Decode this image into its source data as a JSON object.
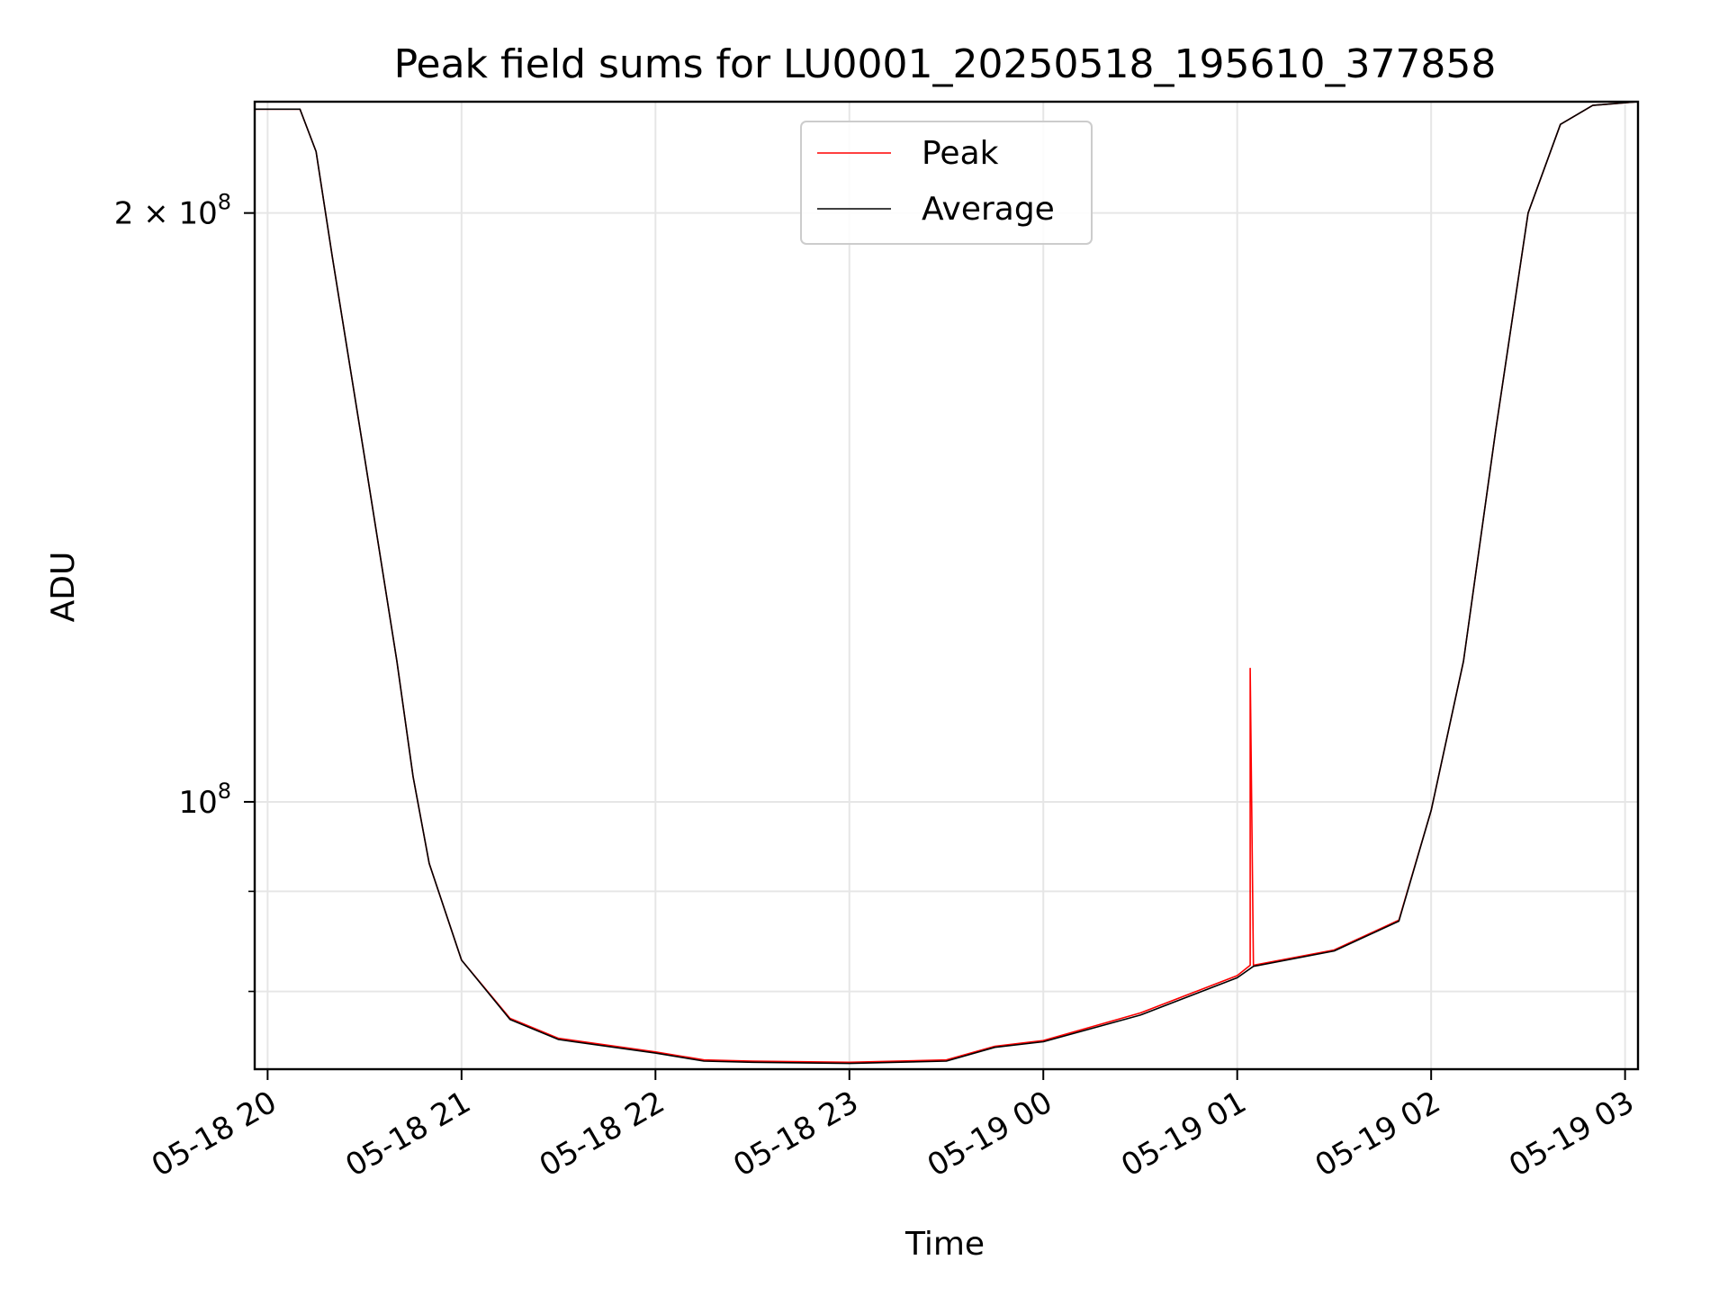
{
  "chart_data": {
    "type": "line",
    "title": "Peak field sums for LU0001_20250518_195610_377858",
    "xlabel": "Time",
    "ylabel": "ADU",
    "y_scale": "log",
    "x_range": [
      "05-18 19:56",
      "05-19 03:04"
    ],
    "ylim": [
      73000000,
      228000000
    ],
    "grid": true,
    "legend_position": "upper center",
    "x_ticks": [
      "05-18 20",
      "05-18 21",
      "05-18 22",
      "05-18 23",
      "05-19 00",
      "05-19 01",
      "05-19 02",
      "05-19 03"
    ],
    "y_major_ticks": [
      {
        "value": 100000000,
        "mantissa": "",
        "exponent": "8"
      },
      {
        "value": 200000000,
        "mantissa": "2 × ",
        "exponent": "8"
      }
    ],
    "y_minor_ticks": [
      80000000,
      90000000
    ],
    "series": [
      {
        "name": "Peak",
        "color": "#ff0000",
        "x": [
          "05-18 19:56",
          "05-18 20:10",
          "05-18 20:15",
          "05-18 20:20",
          "05-18 20:30",
          "05-18 20:40",
          "05-18 20:45",
          "05-18 20:50",
          "05-18 21:00",
          "05-18 21:15",
          "05-18 21:30",
          "05-18 22:00",
          "05-18 22:15",
          "05-18 22:30",
          "05-18 23:00",
          "05-18 23:30",
          "05-18 23:45",
          "05-19 00:00",
          "05-19 00:30",
          "05-19 01:00",
          "05-19 01:04",
          "05-19 01:04",
          "05-19 01:05",
          "05-19 01:30",
          "05-19 01:50",
          "05-19 02:00",
          "05-19 02:10",
          "05-19 02:20",
          "05-19 02:30",
          "05-19 02:40",
          "05-19 02:50",
          "05-19 03:04"
        ],
        "y": [
          226000000,
          226000000,
          215000000,
          190000000,
          150000000,
          118000000,
          103000000,
          93000000,
          83000000,
          77500000,
          75700000,
          74500000,
          73800000,
          73700000,
          73600000,
          73800000,
          75000000,
          75500000,
          78000000,
          81500000,
          82500000,
          117000000,
          82500000,
          84000000,
          87000000,
          99000000,
          118000000,
          155000000,
          200000000,
          222000000,
          227000000,
          228000000
        ]
      },
      {
        "name": "Average",
        "color": "#000000",
        "x": [
          "05-18 19:56",
          "05-18 20:10",
          "05-18 20:15",
          "05-18 20:20",
          "05-18 20:30",
          "05-18 20:40",
          "05-18 20:45",
          "05-18 20:50",
          "05-18 21:00",
          "05-18 21:15",
          "05-18 21:30",
          "05-18 22:00",
          "05-18 22:15",
          "05-18 22:30",
          "05-18 23:00",
          "05-18 23:30",
          "05-18 23:45",
          "05-19 00:00",
          "05-19 00:30",
          "05-19 01:00",
          "05-19 01:05",
          "05-19 01:30",
          "05-19 01:50",
          "05-19 02:00",
          "05-19 02:10",
          "05-19 02:20",
          "05-19 02:30",
          "05-19 02:40",
          "05-19 02:50",
          "05-19 03:04"
        ],
        "y": [
          226000000,
          226000000,
          215000000,
          190000000,
          150000000,
          118000000,
          103000000,
          93000000,
          83000000,
          77400000,
          75600000,
          74400000,
          73700000,
          73600000,
          73500000,
          73700000,
          74900000,
          75400000,
          77800000,
          81300000,
          82400000,
          83900000,
          86900000,
          99000000,
          118000000,
          155000000,
          200000000,
          222000000,
          227000000,
          228000000
        ]
      }
    ]
  }
}
